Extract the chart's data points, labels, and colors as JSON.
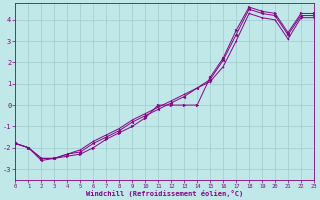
{
  "xlabel": "Windchill (Refroidissement éolien,°C)",
  "bg_color": "#c0e8e8",
  "grid_color": "#a0cccc",
  "line_color": "#880088",
  "xlim": [
    0,
    23
  ],
  "ylim": [
    -3.5,
    4.8
  ],
  "yticks": [
    -3,
    -2,
    -1,
    0,
    1,
    2,
    3,
    4
  ],
  "xticks": [
    0,
    1,
    2,
    3,
    4,
    5,
    6,
    7,
    8,
    9,
    10,
    11,
    12,
    13,
    14,
    15,
    16,
    17,
    18,
    19,
    20,
    21,
    22,
    23
  ],
  "line1_x": [
    0,
    1,
    2,
    3,
    4,
    5,
    6,
    7,
    8,
    9,
    10,
    11,
    12,
    13,
    14,
    15,
    16,
    17,
    18,
    19,
    20,
    21,
    22,
    23
  ],
  "line1_y": [
    -1.8,
    -2.0,
    -2.6,
    -2.5,
    -2.3,
    -2.2,
    -1.8,
    -1.5,
    -1.2,
    -0.8,
    -0.5,
    -0.2,
    0.1,
    0.4,
    0.8,
    1.2,
    2.1,
    3.3,
    4.5,
    4.3,
    4.2,
    3.3,
    4.2,
    4.2
  ],
  "line2_x": [
    0,
    1,
    2,
    3,
    4,
    5,
    6,
    7,
    8,
    9,
    10,
    11,
    12,
    13,
    14,
    15,
    16,
    17,
    18,
    19,
    20,
    21,
    22,
    23
  ],
  "line2_y": [
    -1.8,
    -2.0,
    -2.5,
    -2.5,
    -2.4,
    -2.3,
    -2.0,
    -1.6,
    -1.3,
    -1.0,
    -0.6,
    0.0,
    0.0,
    0.0,
    0.0,
    1.3,
    2.2,
    3.5,
    4.6,
    4.4,
    4.3,
    3.4,
    4.3,
    4.3
  ],
  "line3_x": [
    0,
    1,
    2,
    3,
    4,
    5,
    6,
    7,
    8,
    9,
    10,
    11,
    12,
    13,
    14,
    15,
    16,
    17,
    18,
    19,
    20,
    21,
    22,
    23
  ],
  "line3_y": [
    -1.8,
    -2.0,
    -2.5,
    -2.5,
    -2.3,
    -2.1,
    -1.7,
    -1.4,
    -1.1,
    -0.7,
    -0.4,
    -0.1,
    0.2,
    0.5,
    0.8,
    1.1,
    1.8,
    3.0,
    4.3,
    4.1,
    4.0,
    3.1,
    4.1,
    4.1
  ]
}
